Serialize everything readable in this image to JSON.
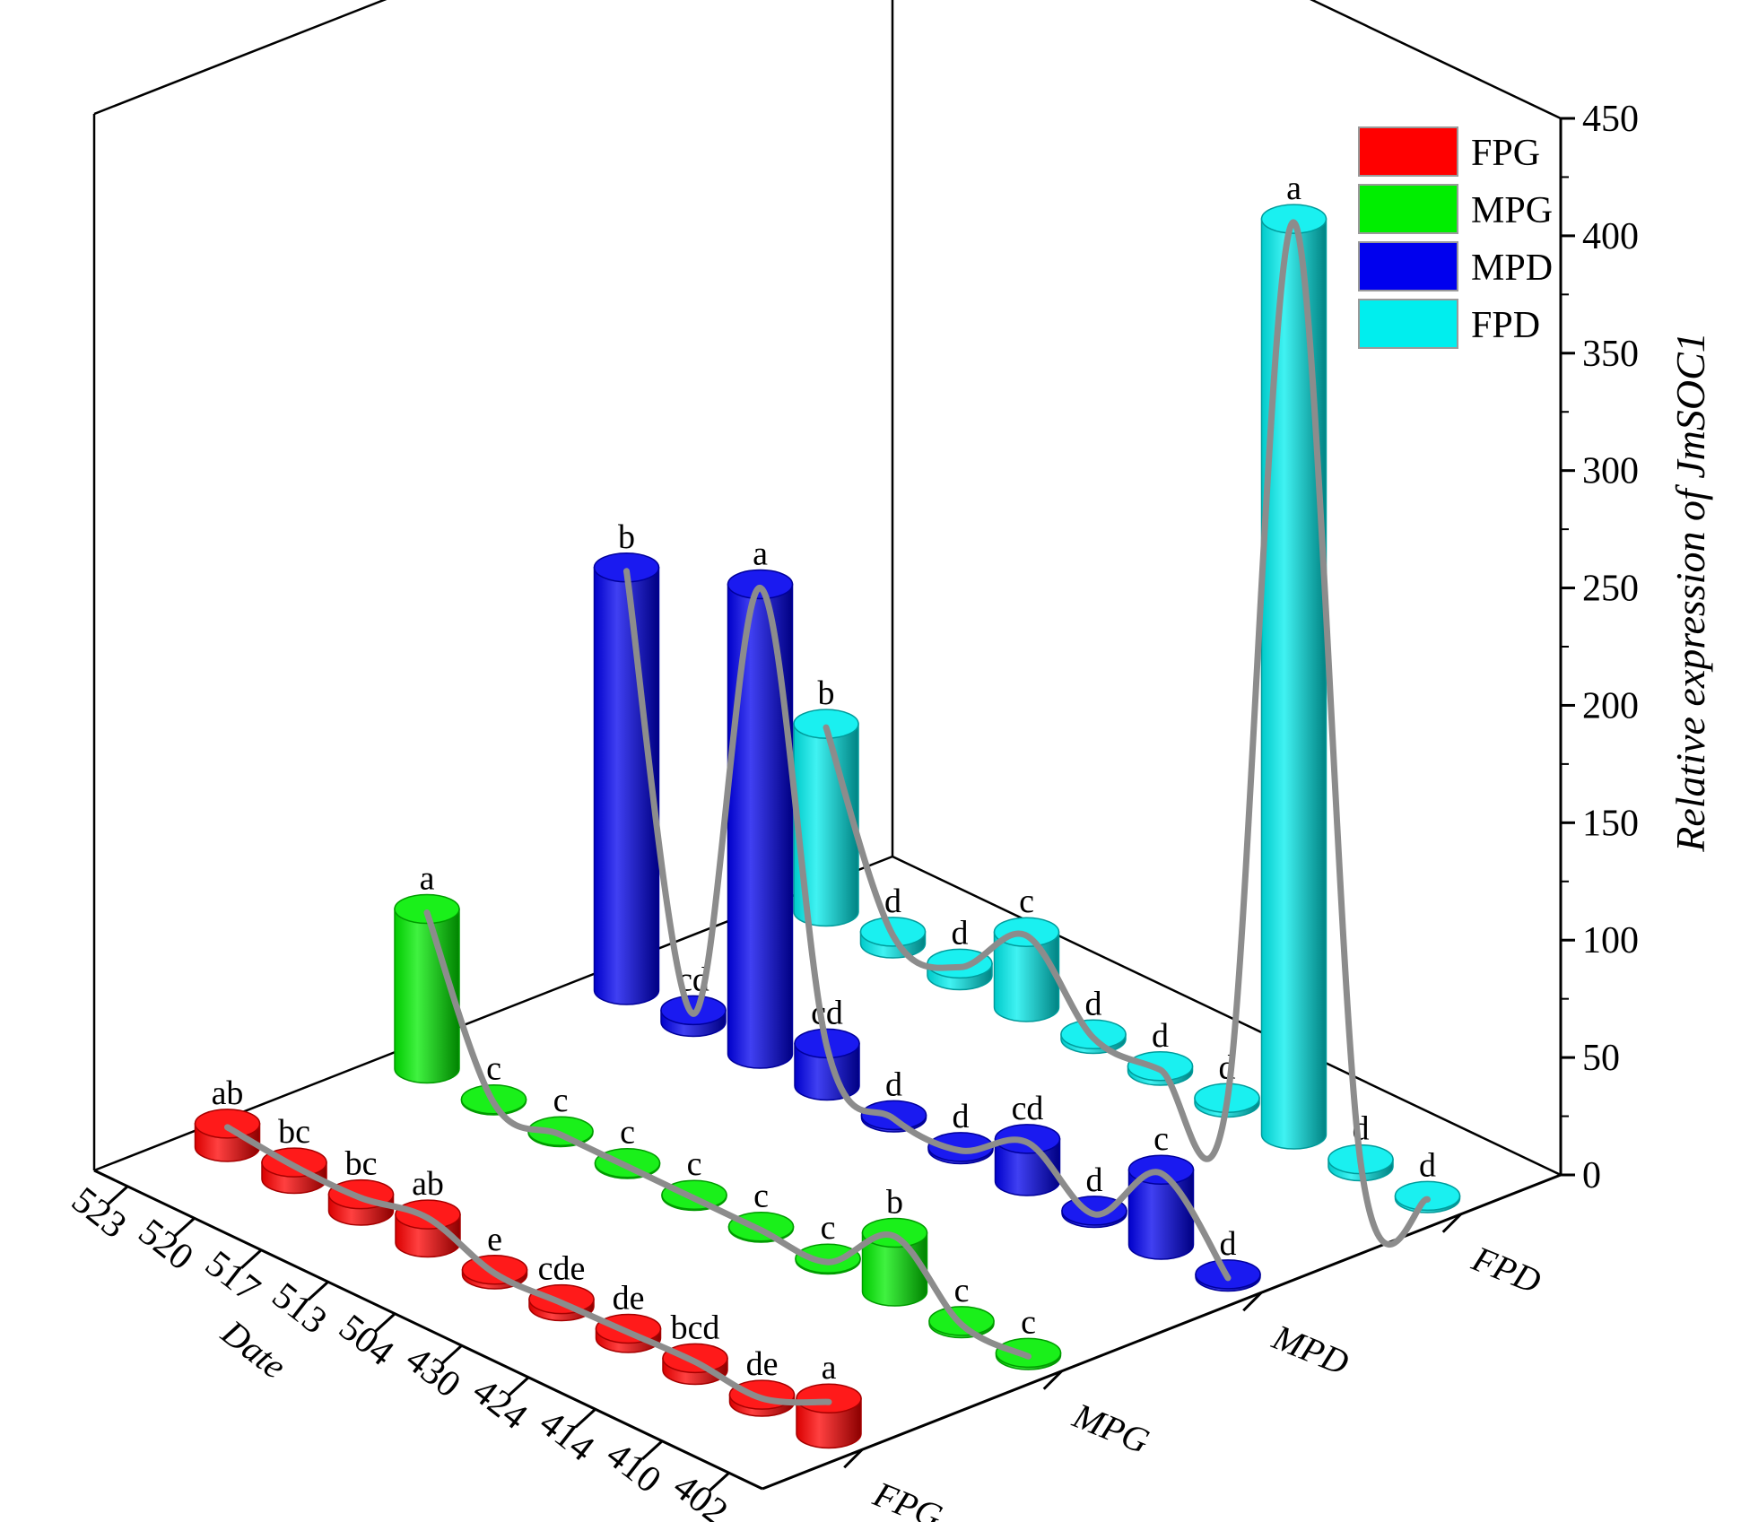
{
  "chart_data": {
    "type": "bar",
    "style": "3d-cylinder",
    "xlabel": "Date",
    "ylabel_prefix": "Relative expression of ",
    "ylabel_gene": "JmSOC1",
    "categories": [
      "402",
      "410",
      "414",
      "424",
      "430",
      "504",
      "513",
      "517",
      "520",
      "523"
    ],
    "groups": [
      "FPG",
      "MPG",
      "MPD",
      "FPD"
    ],
    "ylim": [
      0,
      450
    ],
    "yticks": [
      0,
      50,
      100,
      150,
      200,
      250,
      300,
      350,
      400,
      450
    ],
    "legend_position": "top-right",
    "fit_line_color": "#8c8c8c",
    "series": [
      {
        "name": "FPG",
        "color": "#ff0000",
        "values": [
          15,
          3,
          5,
          4,
          3,
          2,
          12,
          7,
          7,
          10
        ],
        "labels": [
          "a",
          "de",
          "bcd",
          "de",
          "cde",
          "e",
          "ab",
          "bc",
          "bc",
          "ab"
        ]
      },
      {
        "name": "MPG",
        "color": "#00ee00",
        "values": [
          1,
          1,
          25,
          0.5,
          0.5,
          0.5,
          0.5,
          0.5,
          0.5,
          68
        ],
        "labels": [
          "c",
          "c",
          "b",
          "c",
          "c",
          "c",
          "c",
          "c",
          "c",
          "a"
        ]
      },
      {
        "name": "MPD",
        "color": "#0000ee",
        "values": [
          1,
          32,
          1,
          18,
          1,
          1,
          18,
          200,
          5,
          180
        ],
        "labels": [
          "d",
          "c",
          "d",
          "cd",
          "d",
          "d",
          "cd",
          "a",
          "cd",
          "b"
        ]
      },
      {
        "name": "FPD",
        "color": "#00eeee",
        "values": [
          1,
          3,
          390,
          2,
          2,
          2,
          32,
          5,
          5,
          80
        ],
        "labels": [
          "d",
          "d",
          "a",
          "d",
          "d",
          "d",
          "c",
          "d",
          "d",
          "b"
        ]
      }
    ]
  }
}
